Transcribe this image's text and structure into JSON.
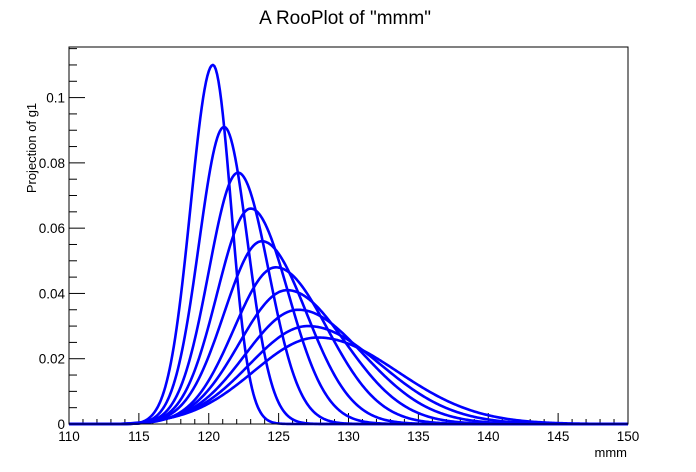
{
  "chart_data": {
    "type": "line",
    "title": "A RooPlot of \"mmm\"",
    "xlabel": "mmm",
    "ylabel": "Projection of g1",
    "xlim": [
      110,
      150
    ],
    "ylim": [
      0,
      0.1155
    ],
    "grid": false,
    "legend": "none",
    "line_color": "#0000ff",
    "x_tick_labels": [
      "110",
      "115",
      "120",
      "125",
      "130",
      "135",
      "140",
      "145",
      "150"
    ],
    "y_tick_labels": [
      "0",
      "0.02",
      "0.04",
      "0.06",
      "0.08",
      "0.1"
    ],
    "curve_model": "right-skewed peak with shared left-edge onset near x = 116",
    "series": [
      {
        "peak_x": 120.3,
        "peak_y": 0.11,
        "onset_x": 116.1,
        "left_width": 1.6,
        "right_width": 1.3
      },
      {
        "peak_x": 121.1,
        "peak_y": 0.091,
        "onset_x": 116.1,
        "left_width": 1.8,
        "right_width": 1.7
      },
      {
        "peak_x": 122.1,
        "peak_y": 0.077,
        "onset_x": 116.1,
        "left_width": 2.1,
        "right_width": 2.2
      },
      {
        "peak_x": 123.0,
        "peak_y": 0.066,
        "onset_x": 116.1,
        "left_width": 2.4,
        "right_width": 2.7
      },
      {
        "peak_x": 123.8,
        "peak_y": 0.056,
        "onset_x": 116.1,
        "left_width": 2.7,
        "right_width": 3.2
      },
      {
        "peak_x": 124.8,
        "peak_y": 0.048,
        "onset_x": 116.1,
        "left_width": 3.0,
        "right_width": 3.7
      },
      {
        "peak_x": 125.6,
        "peak_y": 0.041,
        "onset_x": 116.1,
        "left_width": 3.4,
        "right_width": 4.2
      },
      {
        "peak_x": 126.4,
        "peak_y": 0.035,
        "onset_x": 116.1,
        "left_width": 3.8,
        "right_width": 4.7
      },
      {
        "peak_x": 127.1,
        "peak_y": 0.03,
        "onset_x": 116.1,
        "left_width": 4.2,
        "right_width": 5.2
      },
      {
        "peak_x": 127.8,
        "peak_y": 0.0265,
        "onset_x": 116.1,
        "left_width": 4.6,
        "right_width": 5.7
      }
    ]
  }
}
